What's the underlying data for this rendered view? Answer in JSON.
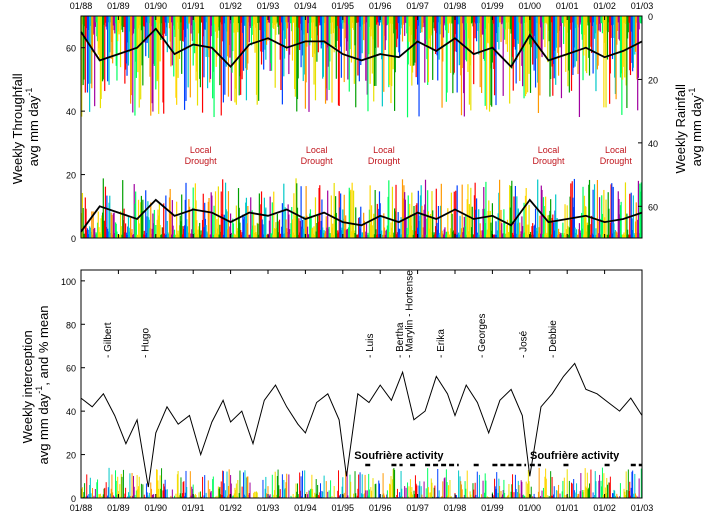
{
  "chart_data": [
    {
      "type": "line",
      "panel": "top",
      "title": "",
      "ylabel_left": [
        "Weekly Throughfall",
        "avg mm day",
        "-1"
      ],
      "ylabel_right": [
        "Weekly Rainfall",
        "avg mm day",
        "-1"
      ],
      "x_tick_labels": [
        "01/88",
        "01/89",
        "01/90",
        "01/91",
        "01/92",
        "01/93",
        "01/94",
        "01/95",
        "01/96",
        "01/97",
        "01/98",
        "01/99",
        "01/00",
        "01/01",
        "01/02",
        "01/03"
      ],
      "xlim": [
        "1988-01",
        "2003-01"
      ],
      "ylim_left": [
        0,
        70
      ],
      "y_ticks_left": [
        0,
        20,
        40,
        60
      ],
      "ylim_right_inverted": [
        0,
        70
      ],
      "y_ticks_right": [
        0,
        20,
        40,
        60
      ],
      "annotations": [
        {
          "text": [
            "Local",
            "Drought"
          ],
          "x": 1991.2
        },
        {
          "text": [
            "Local",
            "Drought"
          ],
          "x": 1994.3
        },
        {
          "text": [
            "Local",
            "Drought"
          ],
          "x": 1996.1
        },
        {
          "text": [
            "Local",
            "Drought"
          ],
          "x": 2000.5
        },
        {
          "text": [
            "Local",
            "Drought"
          ],
          "x": 2002.3
        }
      ],
      "series": [
        {
          "role": "throughfall_smoothed",
          "x": [
            1988.0,
            1988.5,
            1989.0,
            1989.5,
            1990.0,
            1990.5,
            1991.0,
            1991.5,
            1992.0,
            1992.5,
            1993.0,
            1993.5,
            1994.0,
            1994.5,
            1995.0,
            1995.5,
            1996.0,
            1996.5,
            1997.0,
            1997.5,
            1998.0,
            1998.5,
            1999.0,
            1999.5,
            2000.0,
            2000.5,
            2001.0,
            2001.5,
            2002.0,
            2002.5,
            2003.0
          ],
          "values": [
            2,
            10,
            8,
            6,
            12,
            7,
            9,
            8,
            5,
            8,
            7,
            9,
            6,
            8,
            5,
            4,
            7,
            5,
            8,
            6,
            9,
            6,
            7,
            4,
            12,
            5,
            6,
            7,
            5,
            6,
            8
          ]
        },
        {
          "role": "rainfall_smoothed",
          "x": [
            1988.0,
            1988.5,
            1989.0,
            1989.5,
            1990.0,
            1990.5,
            1991.0,
            1991.5,
            1992.0,
            1992.5,
            1993.0,
            1993.5,
            1994.0,
            1994.5,
            1995.0,
            1995.5,
            1996.0,
            1996.5,
            1997.0,
            1997.5,
            1998.0,
            1998.5,
            1999.0,
            1999.5,
            2000.0,
            2000.5,
            2001.0,
            2001.5,
            2002.0,
            2002.5,
            2003.0
          ],
          "values": [
            5,
            14,
            12,
            10,
            4,
            12,
            9,
            10,
            16,
            9,
            7,
            10,
            8,
            8,
            12,
            14,
            12,
            13,
            8,
            11,
            7,
            12,
            10,
            16,
            6,
            14,
            12,
            10,
            13,
            11,
            8
          ]
        }
      ]
    },
    {
      "type": "line",
      "panel": "bottom",
      "title": "",
      "ylabel": [
        "Weekly interception",
        "avg mm day",
        "-1",
        ", and % mean"
      ],
      "x_tick_labels": [
        "01/88",
        "01/89",
        "01/90",
        "01/91",
        "01/92",
        "01/93",
        "01/94",
        "01/95",
        "01/96",
        "01/97",
        "01/98",
        "01/99",
        "01/00",
        "01/01",
        "01/02",
        "01/03"
      ],
      "xlim": [
        "1988-01",
        "2003-01"
      ],
      "ylim": [
        0,
        100
      ],
      "y_ticks": [
        0,
        20,
        40,
        60,
        80,
        100
      ],
      "hurricanes": [
        {
          "name": "Gilbert",
          "x": 1988.7
        },
        {
          "name": "Hugo",
          "x": 1989.7
        },
        {
          "name": "Luis",
          "x": 1995.7
        },
        {
          "name": "Bertha",
          "x": 1996.5
        },
        {
          "name": "Marylin - Hortense",
          "x": 1996.75
        },
        {
          "name": "Erika",
          "x": 1997.6
        },
        {
          "name": "Georges",
          "x": 1998.7
        },
        {
          "name": "José",
          "x": 1999.8
        },
        {
          "name": "Debbie",
          "x": 2000.6
        }
      ],
      "soufriere_label": "Soufrière activity",
      "soufriere_labels": [
        {
          "text": "Soufrière activity",
          "x": 1996.5
        },
        {
          "text": "Soufrière activity",
          "x": 2001.2
        }
      ],
      "soufriere_periods": [
        [
          1995.6,
          1995.8
        ],
        [
          1996.3,
          1996.6
        ],
        [
          1996.8,
          1997.0
        ],
        [
          1997.2,
          1998.1
        ],
        [
          1998.5,
          1998.7
        ],
        [
          1999.0,
          1999.9
        ],
        [
          2000.0,
          2000.3
        ],
        [
          2000.9,
          2001.1
        ],
        [
          2002.0,
          2002.2
        ],
        [
          2002.7,
          2003.0
        ]
      ],
      "series": [
        {
          "role": "interception_percent_mean",
          "x": [
            1988.0,
            1988.3,
            1988.6,
            1988.9,
            1989.2,
            1989.5,
            1989.8,
            1990.0,
            1990.3,
            1990.6,
            1990.9,
            1991.2,
            1991.5,
            1991.8,
            1992.0,
            1992.3,
            1992.6,
            1992.9,
            1993.2,
            1993.5,
            1993.8,
            1994.0,
            1994.3,
            1994.6,
            1994.9,
            1995.1,
            1995.4,
            1995.7,
            1996.0,
            1996.3,
            1996.6,
            1996.9,
            1997.2,
            1997.5,
            1997.8,
            1998.0,
            1998.3,
            1998.6,
            1998.9,
            1999.2,
            1999.5,
            1999.8,
            2000.0,
            2000.3,
            2000.6,
            2000.9,
            2001.2,
            2001.5,
            2001.8,
            2002.1,
            2002.4,
            2002.7,
            2003.0
          ],
          "values": [
            46,
            42,
            48,
            38,
            25,
            36,
            5,
            30,
            42,
            34,
            38,
            20,
            35,
            45,
            35,
            40,
            25,
            45,
            52,
            42,
            34,
            30,
            44,
            48,
            36,
            10,
            48,
            44,
            52,
            45,
            58,
            36,
            40,
            56,
            48,
            38,
            52,
            44,
            30,
            45,
            50,
            38,
            10,
            42,
            48,
            56,
            62,
            50,
            48,
            44,
            40,
            46,
            38
          ]
        }
      ]
    }
  ]
}
